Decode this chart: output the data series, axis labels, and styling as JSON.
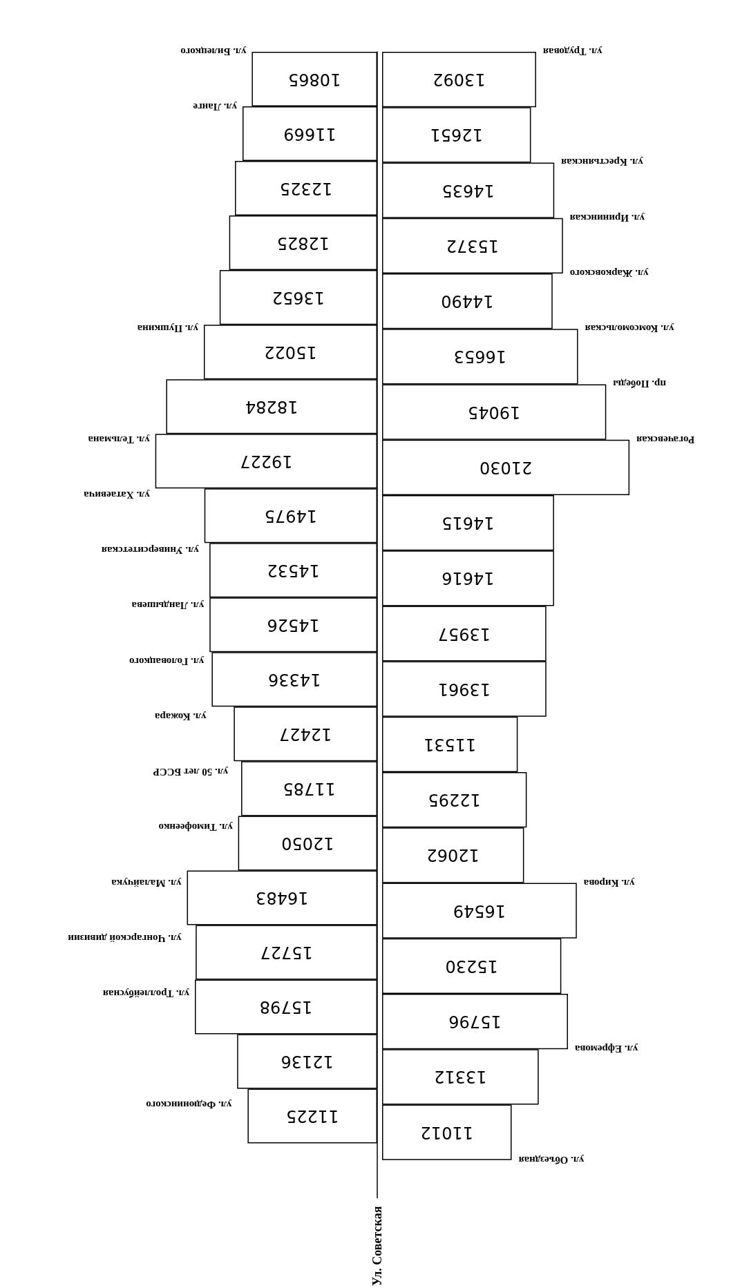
{
  "chart_data": [
    {
      "type": "bar",
      "orientation": "horizontal",
      "ylabel": "Ул. Советская",
      "categories": [
        "ул. Билецкого",
        "ул. Ланге",
        null,
        null,
        null,
        "ул. Пушкина",
        null,
        "ул. Тельмана",
        "ул. Хатаевича",
        "ул. Университетская",
        "ул. Ландышева",
        "ул. Головацкого",
        "ул. Кожара",
        "ул. 50 лет БССР",
        "ул. Тимофеенко",
        "ул. Малайчука",
        "ул. Чонгарской дивизии",
        "ул. Троллейбусная",
        null,
        "ул. Федюнинского",
        null
      ],
      "series": [
        {
          "color": "#ffffff",
          "values": [
            10865,
            11669,
            12325,
            12825,
            13652,
            15022,
            18284,
            19227,
            14975,
            14532,
            14526,
            14336,
            12427,
            11785,
            12050,
            16483,
            15727,
            15798,
            12136,
            11225,
            null
          ]
        }
      ],
      "tick_labels": false,
      "data_labels": true
    },
    {
      "type": "bar",
      "orientation": "horizontal",
      "categories": [
        "ул. Трудовая",
        null,
        "ул. Крестьянская",
        "ул. Ирининская",
        "ул. Жарковского",
        "ул. Комсомольская",
        "пр. Победы",
        "Рогачевская",
        null,
        null,
        null,
        null,
        null,
        null,
        null,
        "ул. Кирова",
        null,
        null,
        "ул. Ефремова",
        null,
        "ул. Объездная"
      ],
      "series": [
        {
          "color": "#ffffff",
          "values": [
            13092,
            12651,
            14635,
            15372,
            14490,
            16653,
            19045,
            21030,
            14615,
            14616,
            13957,
            13961,
            11531,
            12295,
            12062,
            16549,
            15230,
            15796,
            13312,
            11012,
            null
          ]
        }
      ],
      "tick_labels": false,
      "data_labels": true
    }
  ]
}
